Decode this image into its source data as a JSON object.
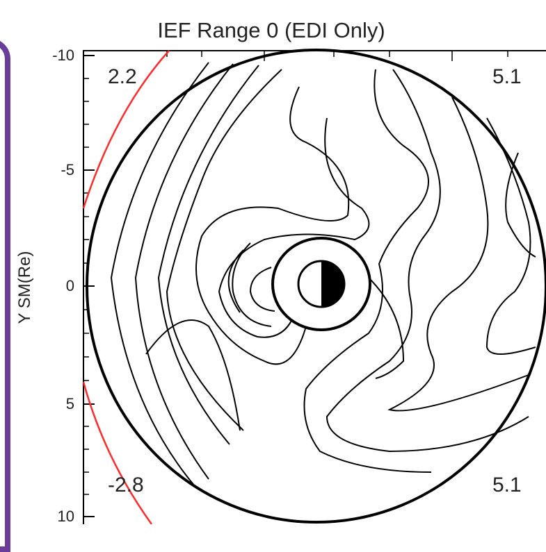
{
  "chart_data": {
    "type": "contour",
    "title": "IEF Range 0 (EDI Only)",
    "ylabel": "Y SM(Re)",
    "ylim": [
      -10,
      10
    ],
    "yticks": [
      "-10",
      "-5",
      "0",
      "5",
      "10"
    ],
    "corner_values": {
      "top_left": "2.2",
      "top_right": "5.1",
      "bottom_left": "-2.8",
      "bottom_right": "5.1"
    },
    "colors": {
      "contour": "#000000",
      "boundary": "#ff2a2a",
      "frame": "#6a3d9a"
    }
  }
}
